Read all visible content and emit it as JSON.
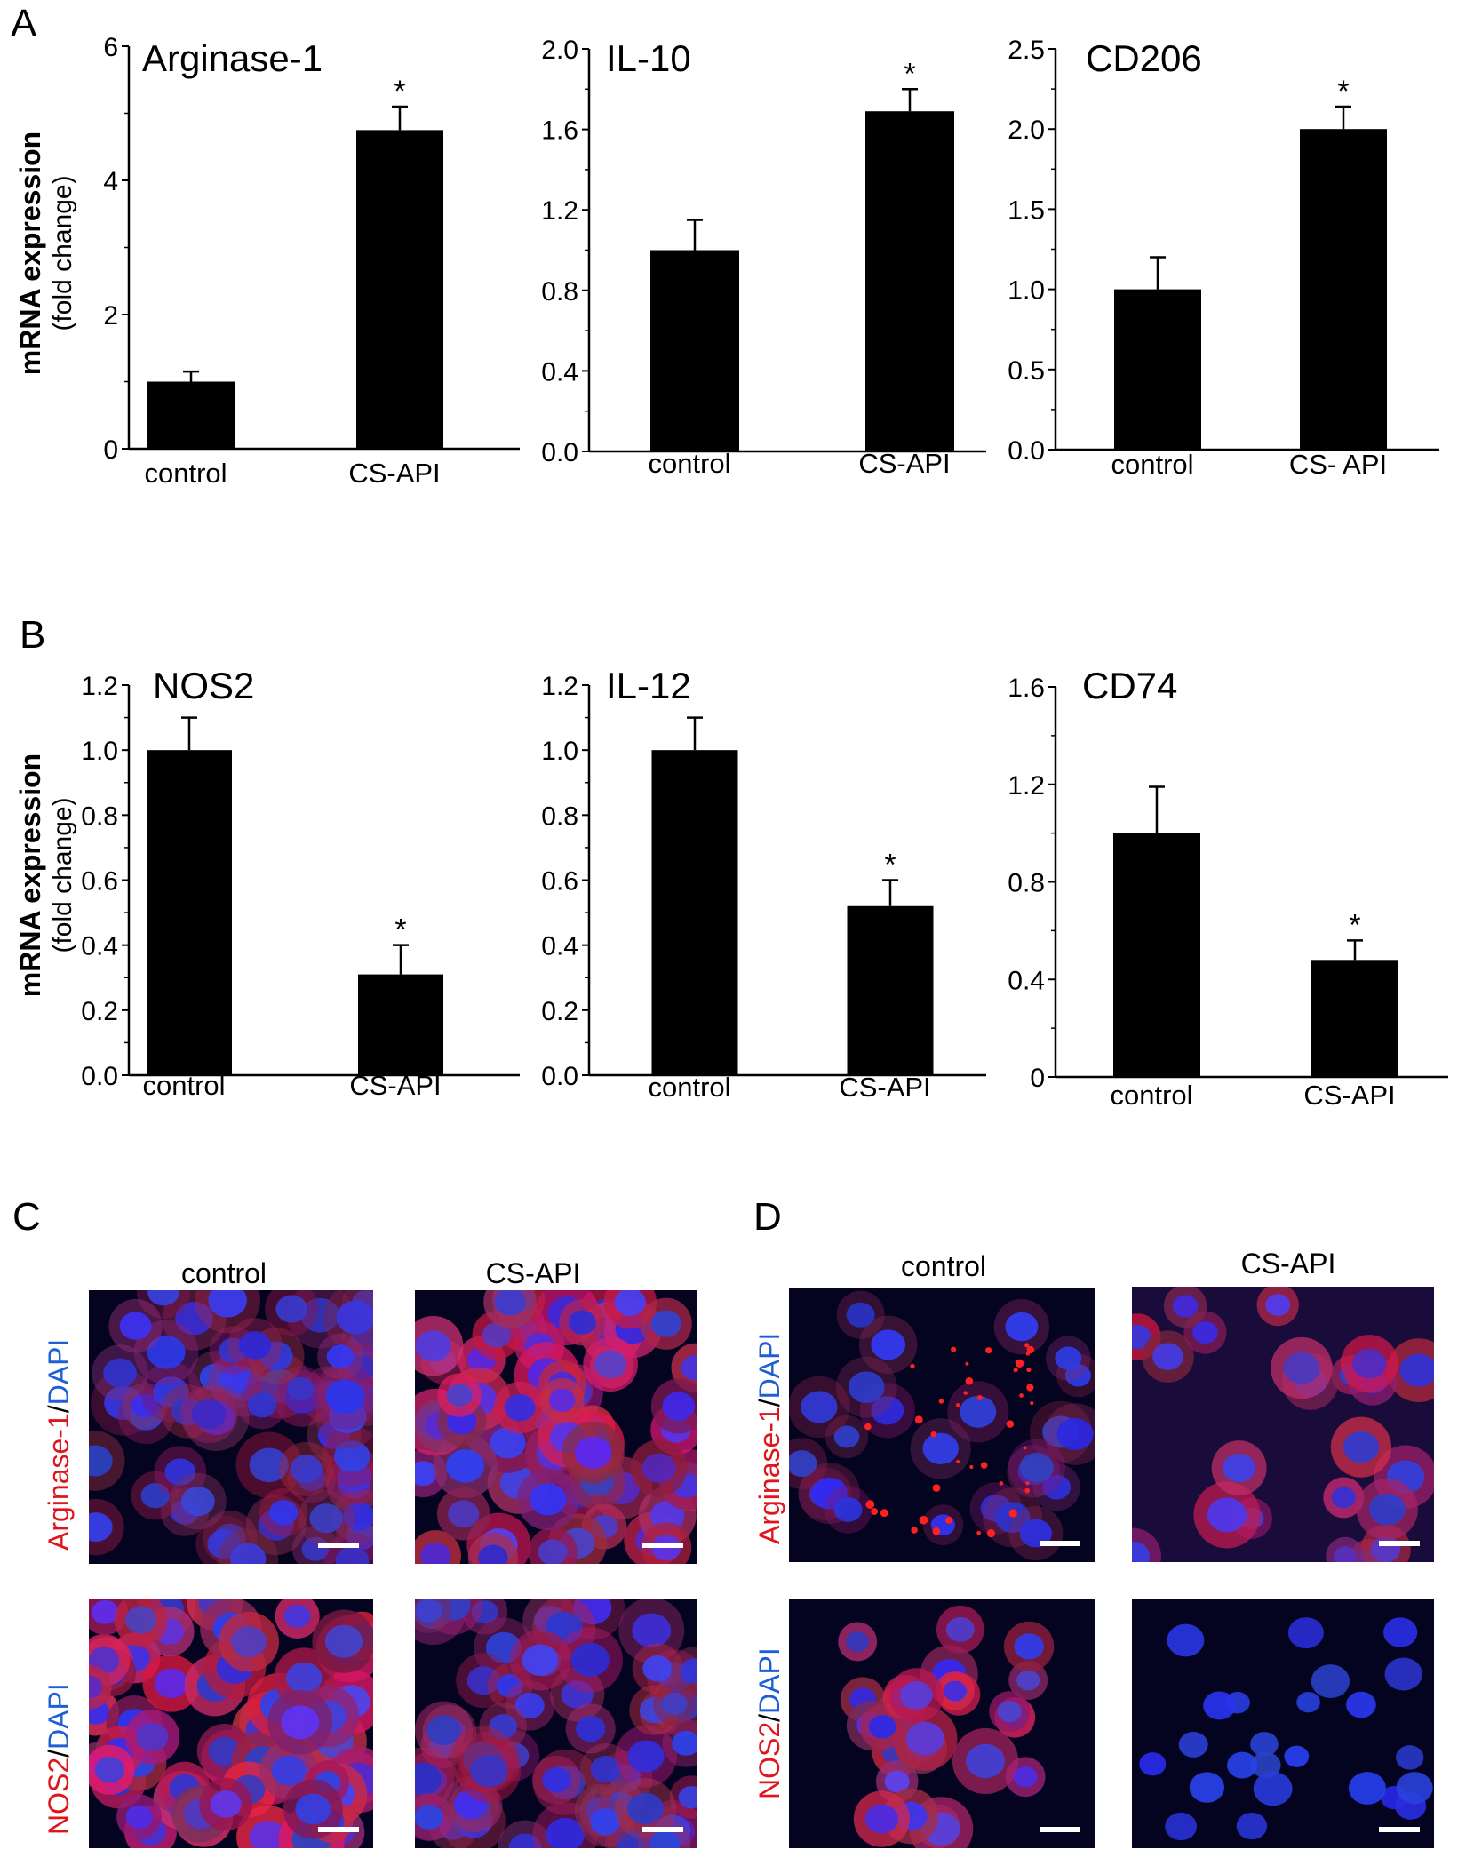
{
  "figure": {
    "panel_letters": [
      "A",
      "B",
      "C",
      "D"
    ],
    "ylabel_main": "mRNA expression",
    "ylabel_sub": "(fold change)"
  },
  "chart_data": [
    {
      "type": "bar",
      "title": "Arginase-1",
      "categories": [
        "control",
        "CS-API"
      ],
      "values": [
        1.0,
        4.75
      ],
      "errors": [
        0.15,
        0.35
      ],
      "significance": [
        "",
        "*"
      ],
      "ylim": [
        0,
        6
      ],
      "yticks": [
        "0",
        "2",
        "4",
        "6"
      ],
      "ytick_values": [
        0,
        2,
        4,
        6
      ],
      "ylabel": "mRNA expression (fold change)"
    },
    {
      "type": "bar",
      "title": "IL-10",
      "categories": [
        "control",
        "CS-API"
      ],
      "values": [
        1.0,
        1.69
      ],
      "errors": [
        0.15,
        0.11
      ],
      "significance": [
        "",
        "*"
      ],
      "ylim": [
        0,
        2.0
      ],
      "yticks": [
        "0.0",
        "0.4",
        "0.8",
        "1.2",
        "1.6",
        "2.0"
      ],
      "ytick_values": [
        0,
        0.4,
        0.8,
        1.2,
        1.6,
        2.0
      ]
    },
    {
      "type": "bar",
      "title": "CD206",
      "categories": [
        "control",
        "CS- API"
      ],
      "values": [
        1.0,
        2.0
      ],
      "errors": [
        0.2,
        0.14
      ],
      "significance": [
        "",
        "*"
      ],
      "ylim": [
        0,
        2.5
      ],
      "yticks": [
        "0.0",
        "0.5",
        "1.0",
        "1.5",
        "2.0",
        "2.5"
      ],
      "ytick_values": [
        0,
        0.5,
        1.0,
        1.5,
        2.0,
        2.5
      ]
    },
    {
      "type": "bar",
      "title": "NOS2",
      "categories": [
        "control",
        "CS-API"
      ],
      "values": [
        1.0,
        0.31
      ],
      "errors": [
        0.1,
        0.09
      ],
      "significance": [
        "",
        "*"
      ],
      "ylim": [
        0,
        1.2
      ],
      "yticks": [
        "0.0",
        "0.2",
        "0.4",
        "0.6",
        "0.8",
        "1.0",
        "1.2"
      ],
      "ytick_values": [
        0,
        0.2,
        0.4,
        0.6,
        0.8,
        1.0,
        1.2
      ],
      "ylabel": "mRNA expression (fold change)"
    },
    {
      "type": "bar",
      "title": "IL-12",
      "categories": [
        "control",
        "CS-API"
      ],
      "values": [
        1.0,
        0.52
      ],
      "errors": [
        0.1,
        0.08
      ],
      "significance": [
        "",
        "*"
      ],
      "ylim": [
        0,
        1.2
      ],
      "yticks": [
        "0.0",
        "0.2",
        "0.4",
        "0.6",
        "0.8",
        "1.0",
        "1.2"
      ],
      "ytick_values": [
        0,
        0.2,
        0.4,
        0.6,
        0.8,
        1.0,
        1.2
      ]
    },
    {
      "type": "bar",
      "title": "CD74",
      "categories": [
        "control",
        "CS-API"
      ],
      "values": [
        1.0,
        0.48
      ],
      "errors": [
        0.19,
        0.08
      ],
      "significance": [
        "",
        "*"
      ],
      "ylim": [
        0,
        1.6
      ],
      "yticks": [
        "0",
        "0.4",
        "0.8",
        "1.2",
        "1.6"
      ],
      "ytick_values": [
        0,
        0.4,
        0.8,
        1.2,
        1.6
      ]
    }
  ],
  "micrographs": {
    "column_labels": [
      "control",
      "CS-API"
    ],
    "rows": [
      {
        "stain": "Arginase-1",
        "sep": "/",
        "counterstain": "DAPI"
      },
      {
        "stain": "NOS2",
        "sep": "/",
        "counterstain": "DAPI"
      }
    ],
    "colors": {
      "stain": "#e0151b",
      "counterstain": "#1f5fd6"
    }
  }
}
